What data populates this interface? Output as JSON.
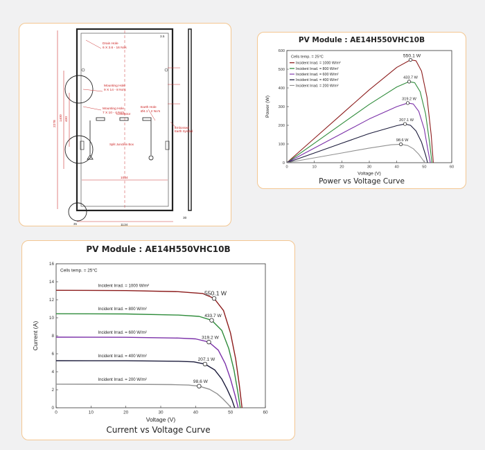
{
  "drawing": {
    "labels": {
      "drain_hole": "Drain Hole",
      "drain_hole_spec": "6 X 3.6 - 16 Nos",
      "mounting_hole_1": "Mounting Hole",
      "mounting_hole_1_spec": "9 X 14 - 8 No's",
      "mounting_hole_2": "Mounting Hole",
      "mounting_hole_2_spec": "7 X 10 - 4 No's",
      "earth_hole": "Earth Hole",
      "earth_hole_spec": "Ø4.1 - 2 No's",
      "connector": "Connector",
      "junction_box": "Split Junction Box",
      "embossed": "Embossed",
      "earth_symbol": "Earth Symbol",
      "dim_height": "2278",
      "dim_1400": "1400",
      "dim_400": "400",
      "dim_width_inner": "1044",
      "dim_width": "1134",
      "dim_35": "35",
      "dim_right": "30",
      "dim_top": "3.5"
    }
  },
  "charts": {
    "pv": {
      "title": "PV Module : AE14H550VHC10B",
      "caption": "Power vs Voltage Curve",
      "cells_temp": "Cells temp. = 25°C"
    },
    "iv": {
      "title": "PV Module : AE14H550VHC10B",
      "caption": "Current vs Voltage Curve",
      "cells_temp": "Cells temp. = 25°C"
    }
  },
  "chart_data": [
    {
      "type": "line",
      "title": "PV Module : AE14H550VHC10B",
      "subtitle": "Power vs Voltage Curve",
      "xlabel": "Voltage (V)",
      "ylabel": "Power (W)",
      "xlim": [
        0,
        60
      ],
      "ylim": [
        0,
        600
      ],
      "xticks": [
        0,
        10,
        20,
        30,
        40,
        50,
        60
      ],
      "yticks": [
        0,
        100,
        200,
        300,
        400,
        500,
        600
      ],
      "annotation": "Cells temp. = 25°C",
      "series": [
        {
          "name": "Incident Irrad. = 1000 W/m²",
          "color": "#8b1a1a",
          "x": [
            0,
            10,
            20,
            30,
            40,
            45,
            47,
            49,
            51,
            52.5,
            53.3
          ],
          "y": [
            0,
            130,
            260,
            390,
            510,
            550.1,
            545,
            490,
            350,
            150,
            0
          ],
          "peak_label": "550.1 W"
        },
        {
          "name": "Incident Irrad. = 800 W/m²",
          "color": "#2e8b3a",
          "x": [
            0,
            10,
            20,
            30,
            40,
            44.5,
            46.5,
            48.5,
            50.5,
            52,
            52.8
          ],
          "y": [
            0,
            104,
            208,
            312,
            405,
            433.7,
            428,
            380,
            260,
            100,
            0
          ],
          "peak_label": "433.7 W"
        },
        {
          "name": "Incident Irrad. = 600 W/m²",
          "color": "#7a2fa8",
          "x": [
            0,
            10,
            20,
            30,
            40,
            44,
            46,
            48,
            50,
            51.3,
            52.2
          ],
          "y": [
            0,
            78,
            156,
            234,
            300,
            319.2,
            314,
            275,
            180,
            70,
            0
          ],
          "peak_label": "319.2 W"
        },
        {
          "name": "Incident Irrad. = 400 W/m²",
          "color": "#1a1a3a",
          "x": [
            0,
            10,
            20,
            30,
            40,
            43,
            45,
            47,
            49,
            50.5,
            51.2
          ],
          "y": [
            0,
            52,
            104,
            156,
            198,
            207.1,
            200,
            170,
            110,
            40,
            0
          ],
          "peak_label": "207.1 W"
        },
        {
          "name": "Incident Irrad. = 200 W/m²",
          "color": "#909090",
          "x": [
            0,
            10,
            20,
            30,
            38,
            41.5,
            44,
            46,
            48,
            49.5,
            50.2
          ],
          "y": [
            0,
            26,
            52,
            78,
            96,
            98.6,
            92,
            75,
            45,
            15,
            0
          ],
          "peak_label": "98.6 W"
        }
      ]
    },
    {
      "type": "line",
      "title": "PV Module : AE14H550VHC10B",
      "subtitle": "Current vs Voltage Curve",
      "xlabel": "Voltage (V)",
      "ylabel": "Current (A)",
      "xlim": [
        0,
        60
      ],
      "ylim": [
        0,
        16
      ],
      "xticks": [
        0,
        10,
        20,
        30,
        40,
        50,
        60
      ],
      "yticks": [
        0,
        2,
        4,
        6,
        8,
        10,
        12,
        14,
        16
      ],
      "annotation": "Cells temp. = 25°C",
      "series": [
        {
          "name": "Incident Irrad. = 1000 W/m²",
          "color": "#8b1a1a",
          "x": [
            0,
            20,
            35,
            42,
            45.3,
            48,
            50,
            51.5,
            52.5,
            53.3
          ],
          "y": [
            13.05,
            13.02,
            12.9,
            12.7,
            12.15,
            10.8,
            8.3,
            5.4,
            2.6,
            0
          ],
          "peak_label": "550.1 W"
        },
        {
          "name": "Incident Irrad. = 800 W/m²",
          "color": "#2e8b3a",
          "x": [
            0,
            20,
            35,
            41,
            44.6,
            47.5,
            49.5,
            51,
            52,
            52.8
          ],
          "y": [
            10.45,
            10.42,
            10.3,
            10.15,
            9.72,
            8.6,
            6.6,
            4.2,
            2.0,
            0
          ],
          "peak_label": "433.7 W"
        },
        {
          "name": "Incident Irrad. = 600 W/m²",
          "color": "#7a2fa8",
          "x": [
            0,
            20,
            35,
            40,
            43.8,
            46.5,
            48.5,
            50,
            51.3,
            52.2
          ],
          "y": [
            7.85,
            7.83,
            7.75,
            7.65,
            7.3,
            6.4,
            4.9,
            3.2,
            1.4,
            0
          ],
          "peak_label": "319.2 W"
        },
        {
          "name": "Incident Irrad. = 400 W/m²",
          "color": "#1a1a3a",
          "x": [
            0,
            20,
            35,
            39.5,
            42.7,
            45.5,
            47.5,
            49,
            50.4,
            51.2
          ],
          "y": [
            5.23,
            5.22,
            5.17,
            5.1,
            4.85,
            4.2,
            3.2,
            2.1,
            0.9,
            0
          ],
          "peak_label": "207.1 W"
        },
        {
          "name": "Incident Irrad. = 200 W/m²",
          "color": "#909090",
          "x": [
            0,
            20,
            33,
            38,
            41,
            44,
            46.2,
            47.8,
            49.3,
            50.2
          ],
          "y": [
            2.62,
            2.61,
            2.58,
            2.52,
            2.4,
            2.05,
            1.55,
            1.0,
            0.4,
            0
          ],
          "peak_label": "98.6 W"
        }
      ]
    }
  ]
}
